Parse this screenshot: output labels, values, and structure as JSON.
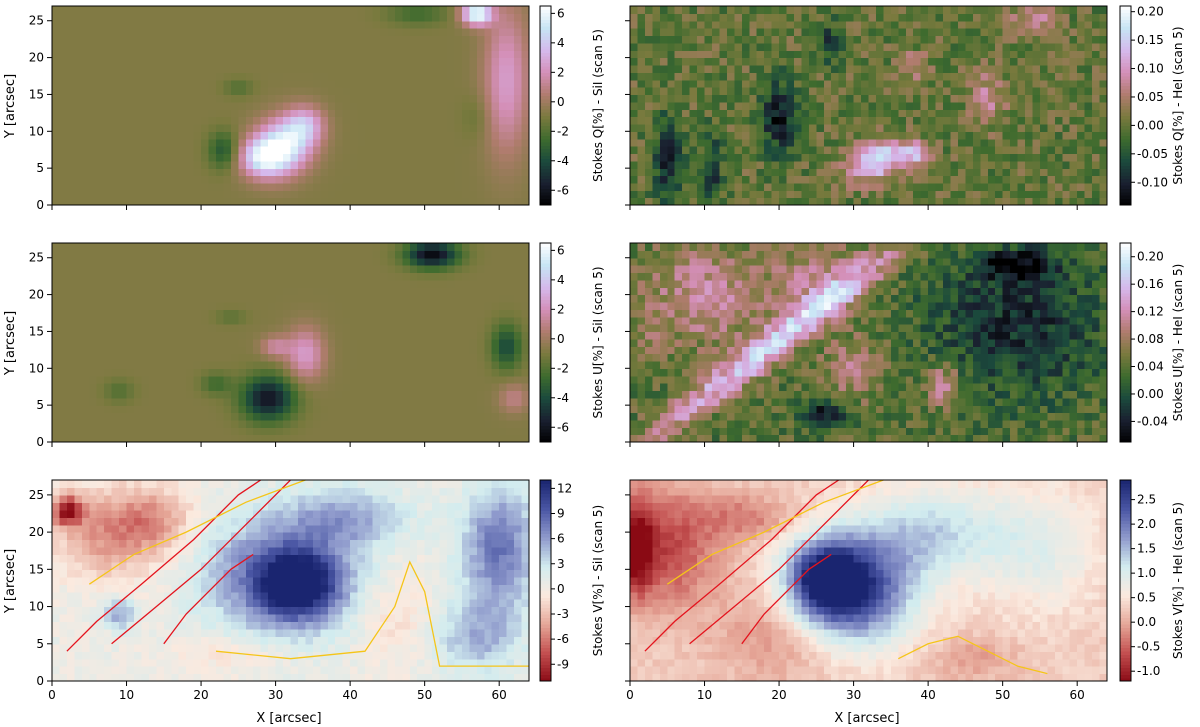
{
  "figure": {
    "x_label": "X [arcsec]",
    "y_label": "Y [arcsec]"
  },
  "colormaps": {
    "cubehelix": [
      "#000000",
      "#1a2030",
      "#1b4a3c",
      "#3e6b2e",
      "#7a7a3e",
      "#b07c6e",
      "#d48fb8",
      "#d5b9ec",
      "#c6e4f4",
      "#ffffff"
    ],
    "red_blue": [
      "#8a0a14",
      "#c35050",
      "#e6a899",
      "#fbeadf",
      "#d2ecef",
      "#8f9acc",
      "#4a56a4",
      "#1a2570"
    ]
  },
  "chart_data": [
    {
      "type": "heatmap",
      "panel": "top-left",
      "colormap": "cubehelix",
      "xlim": [
        0,
        64
      ],
      "ylim": [
        0,
        27
      ],
      "x_ticks": [
        0,
        10,
        20,
        30,
        40,
        50,
        60
      ],
      "y_ticks": [
        0,
        5,
        10,
        15,
        20,
        25
      ],
      "show_x_ticklabels": false,
      "show_y_ticklabels": true,
      "colorbar_label": "Stokes Q[%] -  SiI  (scan 5)",
      "colorbar_range": [
        -7,
        6.5
      ],
      "colorbar_ticks": [
        -6,
        -4,
        -2,
        0,
        2,
        4,
        6
      ],
      "background_value": -0.8,
      "features": [
        {
          "x": 31,
          "y": 8,
          "rx": 4,
          "ry": 3.5,
          "angle": 40,
          "value": 6.0
        },
        {
          "x": 28,
          "y": 6.5,
          "rx": 3,
          "ry": 2.5,
          "angle": 0,
          "value": 3.5
        },
        {
          "x": 34,
          "y": 11,
          "rx": 2.5,
          "ry": 2.5,
          "angle": 0,
          "value": 2.5
        },
        {
          "x": 23,
          "y": 7.5,
          "rx": 2,
          "ry": 2.5,
          "angle": 0,
          "value": -3.5
        },
        {
          "x": 25,
          "y": 16,
          "rx": 2,
          "ry": 1.2,
          "angle": 0,
          "value": -2.0
        },
        {
          "x": 57,
          "y": 26,
          "rx": 2,
          "ry": 1.5,
          "angle": 0,
          "value": 6.5
        },
        {
          "x": 61,
          "y": 17,
          "rx": 3,
          "ry": 10,
          "angle": 0,
          "value": 2.5
        },
        {
          "x": 49,
          "y": 26,
          "rx": 4,
          "ry": 1.5,
          "angle": 0,
          "value": -2.5
        },
        {
          "x": 57,
          "y": 12,
          "rx": 2,
          "ry": 3,
          "angle": 0,
          "value": -1.5
        }
      ]
    },
    {
      "type": "heatmap",
      "panel": "top-right",
      "colormap": "cubehelix",
      "xlim": [
        0,
        64
      ],
      "ylim": [
        0,
        27
      ],
      "x_ticks": [
        0,
        10,
        20,
        30,
        40,
        50,
        60
      ],
      "y_ticks": [
        0,
        5,
        10,
        15,
        20,
        25
      ],
      "show_x_ticklabels": false,
      "show_y_ticklabels": false,
      "colorbar_label": "Stokes Q[%] -  HeI  (scan 5)",
      "colorbar_range": [
        -0.14,
        0.21
      ],
      "colorbar_ticks": [
        -0.1,
        -0.05,
        0.0,
        0.05,
        0.1,
        0.15,
        0.2
      ],
      "background_value": 0.0,
      "noise": 0.035,
      "features": [
        {
          "x": 33,
          "y": 6,
          "rx": 4,
          "ry": 2.5,
          "angle": 20,
          "value": 0.17
        },
        {
          "x": 38,
          "y": 7,
          "rx": 2.5,
          "ry": 1.5,
          "angle": 0,
          "value": 0.12
        },
        {
          "x": 20,
          "y": 12,
          "rx": 2.5,
          "ry": 5,
          "angle": 0,
          "value": -0.11
        },
        {
          "x": 5,
          "y": 6,
          "rx": 2,
          "ry": 6,
          "angle": 0,
          "value": -0.09
        },
        {
          "x": 11,
          "y": 5,
          "rx": 1.5,
          "ry": 5,
          "angle": 0,
          "value": -0.08
        },
        {
          "x": 27,
          "y": 22,
          "rx": 1.2,
          "ry": 3,
          "angle": 0,
          "value": -0.08
        },
        {
          "x": 48,
          "y": 15,
          "rx": 2.5,
          "ry": 4,
          "angle": 0,
          "value": 0.07
        },
        {
          "x": 54,
          "y": 25,
          "rx": 3,
          "ry": 2,
          "angle": 0,
          "value": 0.08
        },
        {
          "x": 38,
          "y": 19,
          "rx": 2,
          "ry": 2,
          "angle": 0,
          "value": 0.06
        }
      ]
    },
    {
      "type": "heatmap",
      "panel": "middle-left",
      "colormap": "cubehelix",
      "xlim": [
        0,
        64
      ],
      "ylim": [
        0,
        27
      ],
      "x_ticks": [
        0,
        10,
        20,
        30,
        40,
        50,
        60
      ],
      "y_ticks": [
        0,
        5,
        10,
        15,
        20,
        25
      ],
      "show_x_ticklabels": false,
      "show_y_ticklabels": true,
      "colorbar_label": "Stokes U[%] -  SiI  (scan 5)",
      "colorbar_range": [
        -7,
        6.5
      ],
      "colorbar_ticks": [
        -6,
        -4,
        -2,
        0,
        2,
        4,
        6
      ],
      "background_value": -0.8,
      "features": [
        {
          "x": 29,
          "y": 6,
          "rx": 3.5,
          "ry": 3,
          "angle": 0,
          "value": -6.0
        },
        {
          "x": 34,
          "y": 12,
          "rx": 2.5,
          "ry": 3.5,
          "angle": 0,
          "value": 2.5
        },
        {
          "x": 30,
          "y": 13,
          "rx": 2,
          "ry": 1.5,
          "angle": 0,
          "value": 1.5
        },
        {
          "x": 51,
          "y": 25.5,
          "rx": 3.5,
          "ry": 1.8,
          "angle": 0,
          "value": -6.5
        },
        {
          "x": 61,
          "y": 13,
          "rx": 2,
          "ry": 3,
          "angle": 0,
          "value": -4.0
        },
        {
          "x": 22,
          "y": 8,
          "rx": 2,
          "ry": 1.5,
          "angle": 0,
          "value": -2.5
        },
        {
          "x": 9,
          "y": 7,
          "rx": 2,
          "ry": 1.5,
          "angle": 0,
          "value": -2.0
        },
        {
          "x": 62,
          "y": 6,
          "rx": 2,
          "ry": 2,
          "angle": 0,
          "value": 1.0
        },
        {
          "x": 24,
          "y": 17,
          "rx": 2,
          "ry": 1,
          "angle": 0,
          "value": -1.8
        }
      ]
    },
    {
      "type": "heatmap",
      "panel": "middle-right",
      "colormap": "cubehelix",
      "xlim": [
        0,
        64
      ],
      "ylim": [
        0,
        27
      ],
      "x_ticks": [
        0,
        10,
        20,
        30,
        40,
        50,
        60
      ],
      "y_ticks": [
        0,
        5,
        10,
        15,
        20,
        25
      ],
      "show_x_ticklabels": false,
      "show_y_ticklabels": false,
      "colorbar_label": "Stokes U[%] -  HeI  (scan 5)",
      "colorbar_range": [
        -0.07,
        0.22
      ],
      "colorbar_ticks": [
        -0.04,
        0.0,
        0.04,
        0.08,
        0.12,
        0.16,
        0.2
      ],
      "background_value": 0.04,
      "noise": 0.03,
      "features": [
        {
          "x": 20,
          "y": 14,
          "rx": 22,
          "ry": 2.2,
          "angle": 38,
          "value": 0.17
        },
        {
          "x": 10,
          "y": 20,
          "rx": 8,
          "ry": 7,
          "angle": 0,
          "value": 0.11
        },
        {
          "x": 25,
          "y": 22,
          "rx": 6,
          "ry": 5,
          "angle": 0,
          "value": 0.1
        },
        {
          "x": 30,
          "y": 10,
          "rx": 4,
          "ry": 4,
          "angle": 0,
          "value": 0.1
        },
        {
          "x": 42,
          "y": 8,
          "rx": 2.5,
          "ry": 3,
          "angle": 0,
          "value": 0.12
        },
        {
          "x": 52,
          "y": 16,
          "rx": 12,
          "ry": 10,
          "angle": 0,
          "value": -0.03
        },
        {
          "x": 26,
          "y": 4,
          "rx": 3,
          "ry": 2,
          "angle": 0,
          "value": -0.05
        },
        {
          "x": 52,
          "y": 24,
          "rx": 5,
          "ry": 2,
          "angle": 0,
          "value": -0.05
        },
        {
          "x": 2,
          "y": 14,
          "rx": 2,
          "ry": 4,
          "angle": 0,
          "value": 0.06
        }
      ]
    },
    {
      "type": "heatmap",
      "panel": "bottom-left",
      "colormap": "red_blue",
      "xlim": [
        0,
        64
      ],
      "ylim": [
        0,
        27
      ],
      "x_ticks": [
        0,
        10,
        20,
        30,
        40,
        50,
        60
      ],
      "y_ticks": [
        0,
        5,
        10,
        15,
        20,
        25
      ],
      "show_x_ticklabels": true,
      "show_y_ticklabels": true,
      "colorbar_label": "Stokes V[%] -  SiI  (scan 5)",
      "colorbar_range": [
        -11,
        13
      ],
      "colorbar_ticks": [
        -9,
        -6,
        -3,
        0,
        3,
        6,
        9,
        12
      ],
      "background_value": 0.5,
      "noise": 0.8,
      "features": [
        {
          "x": 31,
          "y": 14,
          "rx": 10,
          "ry": 8,
          "angle": 0,
          "value": 9.0
        },
        {
          "x": 33,
          "y": 13,
          "rx": 5,
          "ry": 4,
          "angle": 0,
          "value": 11.0
        },
        {
          "x": 60,
          "y": 18,
          "rx": 5,
          "ry": 8,
          "angle": 0,
          "value": 8.0
        },
        {
          "x": 57,
          "y": 6,
          "rx": 6,
          "ry": 5,
          "angle": 0,
          "value": 5.0
        },
        {
          "x": 8,
          "y": 20,
          "rx": 8,
          "ry": 6,
          "angle": 0,
          "value": -5.0
        },
        {
          "x": 2,
          "y": 23,
          "rx": 2,
          "ry": 2,
          "angle": 0,
          "value": -9.0
        },
        {
          "x": 14,
          "y": 22,
          "rx": 5,
          "ry": 4,
          "angle": 0,
          "value": -3.0
        },
        {
          "x": 46,
          "y": 9,
          "rx": 6,
          "ry": 7,
          "angle": 0,
          "value": -1.5
        },
        {
          "x": 25,
          "y": 4,
          "rx": 8,
          "ry": 3,
          "angle": 0,
          "value": -1.5
        },
        {
          "x": 9,
          "y": 9,
          "rx": 2,
          "ry": 2,
          "angle": 0,
          "value": 6.0
        },
        {
          "x": 40,
          "y": 22,
          "rx": 8,
          "ry": 4,
          "angle": 0,
          "value": 5.0
        }
      ],
      "contours": [
        {
          "color": "#e4141e",
          "points": [
            [
              2,
              4
            ],
            [
              6,
              8
            ],
            [
              12,
              13
            ],
            [
              19,
              19
            ],
            [
              25,
              25
            ],
            [
              28,
              27
            ]
          ]
        },
        {
          "color": "#e4141e",
          "points": [
            [
              8,
              5
            ],
            [
              14,
              10
            ],
            [
              20,
              15
            ],
            [
              26,
              21
            ],
            [
              32,
              27
            ]
          ]
        },
        {
          "color": "#e4141e",
          "points": [
            [
              15,
              5
            ],
            [
              18,
              9
            ],
            [
              21,
              12
            ],
            [
              24,
              15
            ],
            [
              27,
              17
            ]
          ]
        },
        {
          "color": "#f5c518",
          "points": [
            [
              5,
              13
            ],
            [
              11,
              17
            ],
            [
              18,
              20
            ],
            [
              26,
              24
            ],
            [
              34,
              27
            ]
          ]
        },
        {
          "color": "#f5c518",
          "points": [
            [
              22,
              4
            ],
            [
              32,
              3
            ],
            [
              42,
              4
            ],
            [
              46,
              10
            ],
            [
              48,
              16
            ],
            [
              50,
              12
            ],
            [
              52,
              2
            ],
            [
              64,
              2
            ]
          ]
        }
      ]
    },
    {
      "type": "heatmap",
      "panel": "bottom-right",
      "colormap": "red_blue",
      "xlim": [
        0,
        64
      ],
      "ylim": [
        0,
        27
      ],
      "x_ticks": [
        0,
        10,
        20,
        30,
        40,
        50,
        60
      ],
      "y_ticks": [
        0,
        5,
        10,
        15,
        20,
        25
      ],
      "show_x_ticklabels": true,
      "show_y_ticklabels": false,
      "colorbar_label": "Stokes V[%] -  HeI  (scan 5)",
      "colorbar_range": [
        -1.2,
        2.9
      ],
      "colorbar_ticks": [
        -1.0,
        -0.5,
        0.0,
        0.5,
        1.0,
        1.5,
        2.0,
        2.5
      ],
      "background_value": 0.3,
      "noise": 0.12,
      "features": [
        {
          "x": 30,
          "y": 12,
          "rx": 8,
          "ry": 7,
          "angle": 0,
          "value": 2.5
        },
        {
          "x": 26,
          "y": 14,
          "rx": 5,
          "ry": 5,
          "angle": 0,
          "value": 2.2
        },
        {
          "x": 40,
          "y": 20,
          "rx": 10,
          "ry": 6,
          "angle": 0,
          "value": 1.3
        },
        {
          "x": 55,
          "y": 18,
          "rx": 8,
          "ry": 8,
          "angle": 0,
          "value": 0.9
        },
        {
          "x": 5,
          "y": 18,
          "rx": 7,
          "ry": 8,
          "angle": 0,
          "value": -0.7
        },
        {
          "x": 1,
          "y": 18,
          "rx": 2,
          "ry": 6,
          "angle": 0,
          "value": -1.0
        },
        {
          "x": 16,
          "y": 22,
          "rx": 6,
          "ry": 3,
          "angle": 0,
          "value": -0.3
        },
        {
          "x": 20,
          "y": 6,
          "rx": 8,
          "ry": 6,
          "angle": 0,
          "value": -0.2
        },
        {
          "x": 46,
          "y": 3,
          "rx": 6,
          "ry": 3,
          "angle": 0,
          "value": -0.1
        }
      ],
      "contours": [
        {
          "color": "#e4141e",
          "points": [
            [
              2,
              4
            ],
            [
              6,
              8
            ],
            [
              12,
              13
            ],
            [
              19,
              19
            ],
            [
              25,
              25
            ],
            [
              28,
              27
            ]
          ]
        },
        {
          "color": "#e4141e",
          "points": [
            [
              8,
              5
            ],
            [
              14,
              10
            ],
            [
              20,
              15
            ],
            [
              26,
              21
            ],
            [
              32,
              27
            ]
          ]
        },
        {
          "color": "#e4141e",
          "points": [
            [
              15,
              5
            ],
            [
              18,
              9
            ],
            [
              21,
              12
            ],
            [
              24,
              15
            ],
            [
              27,
              17
            ]
          ]
        },
        {
          "color": "#f5c518",
          "points": [
            [
              5,
              13
            ],
            [
              11,
              17
            ],
            [
              18,
              20
            ],
            [
              26,
              24
            ],
            [
              34,
              27
            ]
          ]
        },
        {
          "color": "#f5c518",
          "points": [
            [
              36,
              3
            ],
            [
              40,
              5
            ],
            [
              44,
              6
            ],
            [
              48,
              4
            ],
            [
              52,
              2
            ],
            [
              56,
              1
            ]
          ]
        }
      ]
    }
  ]
}
